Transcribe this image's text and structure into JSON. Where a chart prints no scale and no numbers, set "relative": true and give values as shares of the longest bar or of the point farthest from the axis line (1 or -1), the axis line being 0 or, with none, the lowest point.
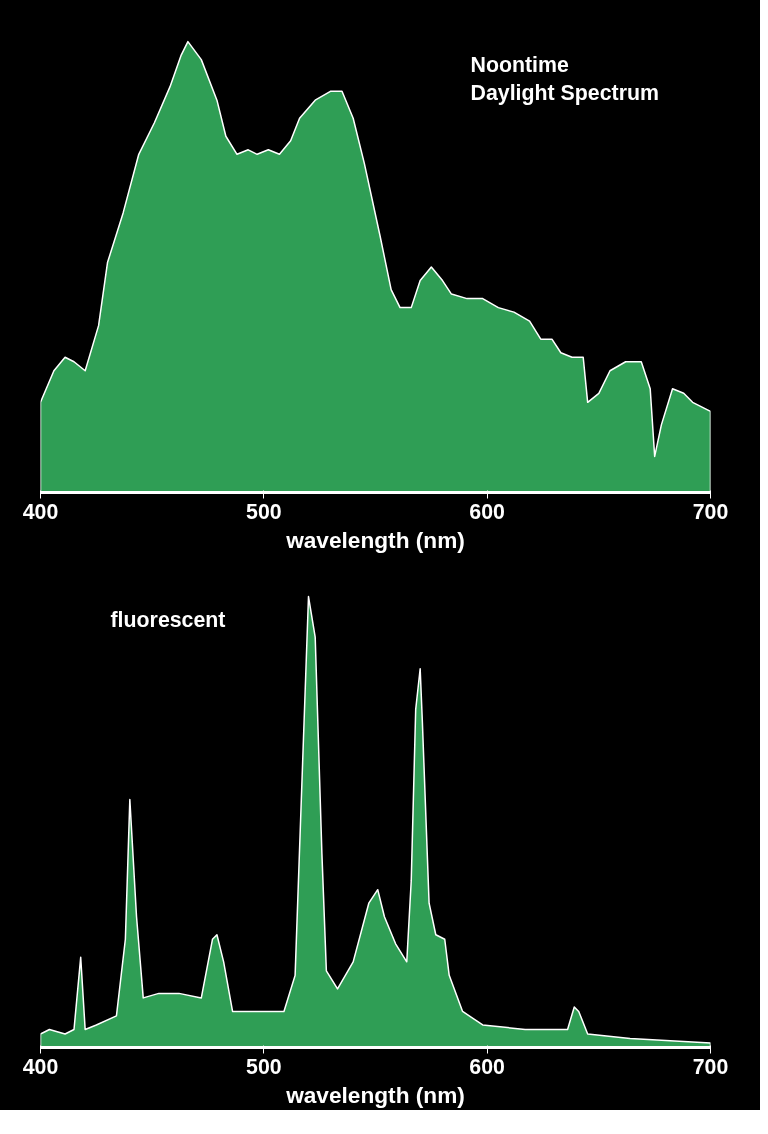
{
  "chart_data": [
    {
      "type": "area",
      "title": "Noontime\nDaylight Spectrum",
      "xlabel": "wavelength (nm)",
      "relative": true,
      "xlim": [
        400,
        700
      ],
      "xticks": [
        400,
        500,
        600,
        700
      ],
      "grid": false,
      "x": [
        400,
        406,
        411,
        415,
        420,
        426,
        430,
        437,
        444,
        451,
        458,
        463,
        466,
        472,
        479,
        483,
        488,
        493,
        497,
        502,
        507,
        512,
        516,
        523,
        530,
        535,
        540,
        545,
        552,
        557,
        561,
        566,
        570,
        575,
        580,
        584,
        591,
        598,
        605,
        612,
        619,
        624,
        629,
        633,
        638,
        643,
        645,
        650,
        655,
        662,
        669,
        673,
        675,
        678,
        683,
        688,
        692,
        700
      ],
      "series": [
        {
          "color": "#2f9e55",
          "values": [
            0.2,
            0.27,
            0.3,
            0.29,
            0.27,
            0.37,
            0.51,
            0.62,
            0.75,
            0.82,
            0.9,
            0.97,
            1.0,
            0.96,
            0.87,
            0.79,
            0.75,
            0.76,
            0.75,
            0.76,
            0.75,
            0.78,
            0.83,
            0.87,
            0.89,
            0.89,
            0.83,
            0.73,
            0.57,
            0.45,
            0.41,
            0.41,
            0.47,
            0.5,
            0.47,
            0.44,
            0.43,
            0.43,
            0.41,
            0.4,
            0.38,
            0.34,
            0.34,
            0.31,
            0.3,
            0.3,
            0.2,
            0.22,
            0.27,
            0.29,
            0.29,
            0.23,
            0.08,
            0.15,
            0.23,
            0.22,
            0.2,
            0.18
          ]
        }
      ]
    },
    {
      "type": "area",
      "title": "fluorescent",
      "xlabel": "wavelength (nm)",
      "relative": true,
      "xlim": [
        400,
        700
      ],
      "xticks": [
        400,
        500,
        600,
        700
      ],
      "grid": false,
      "x": [
        400,
        404,
        411,
        415,
        418,
        420,
        425,
        434,
        438,
        440,
        443,
        446,
        453,
        462,
        472,
        477,
        479,
        482,
        486,
        495,
        509,
        514,
        518,
        520,
        523,
        526,
        528,
        533,
        540,
        547,
        551,
        554,
        559,
        564,
        566,
        568,
        570,
        571,
        574,
        577,
        581,
        583,
        589,
        598,
        617,
        636,
        639,
        641,
        645,
        664,
        700
      ],
      "series": [
        {
          "color": "#2f9e55",
          "values": [
            0.03,
            0.04,
            0.03,
            0.04,
            0.2,
            0.04,
            0.05,
            0.07,
            0.24,
            0.55,
            0.29,
            0.11,
            0.12,
            0.12,
            0.11,
            0.24,
            0.25,
            0.19,
            0.08,
            0.08,
            0.08,
            0.16,
            0.72,
            1.0,
            0.91,
            0.43,
            0.17,
            0.13,
            0.19,
            0.32,
            0.35,
            0.29,
            0.23,
            0.19,
            0.37,
            0.75,
            0.84,
            0.72,
            0.32,
            0.25,
            0.24,
            0.16,
            0.08,
            0.05,
            0.04,
            0.04,
            0.09,
            0.08,
            0.03,
            0.02,
            0.01
          ]
        }
      ]
    }
  ]
}
